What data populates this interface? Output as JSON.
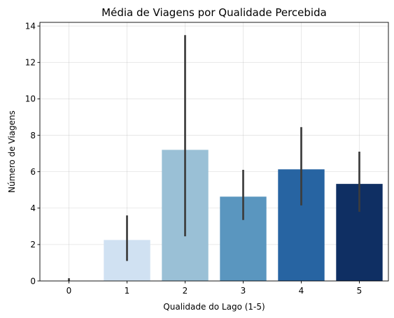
{
  "chart_data": {
    "type": "bar",
    "title": "Média de Viagens por Qualidade Percebida",
    "xlabel": "Qualidade do Lago (1-5)",
    "ylabel": "Número de Viagens",
    "categories": [
      "0",
      "1",
      "2",
      "3",
      "4",
      "5"
    ],
    "values": [
      0.0,
      2.25,
      7.2,
      4.63,
      6.13,
      5.33
    ],
    "error_bars": [
      [
        0.0,
        0.15
      ],
      [
        1.1,
        3.6
      ],
      [
        2.45,
        13.5
      ],
      [
        3.35,
        6.1
      ],
      [
        4.15,
        8.45
      ],
      [
        3.8,
        7.1
      ]
    ],
    "bar_colors": [
      "#f7fbff",
      "#d0e1f2",
      "#9ac0d6",
      "#5a96bf",
      "#2764a2",
      "#0f2f63"
    ],
    "ylim": [
      0,
      14.2
    ],
    "yticks": [
      0,
      2,
      4,
      6,
      8,
      10,
      12,
      14
    ],
    "grid": true,
    "error_bar_color": "#3c3c3c"
  }
}
